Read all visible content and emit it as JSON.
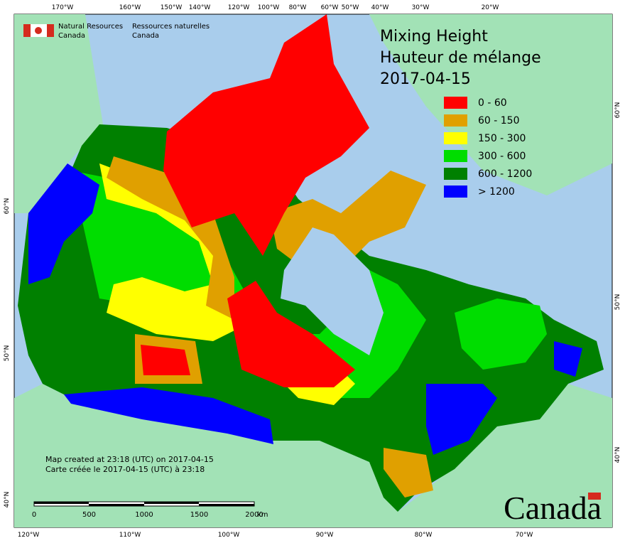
{
  "header": {
    "agency_en": [
      "Natural Resources",
      "Canada"
    ],
    "agency_fr": [
      "Ressources naturelles",
      "Canada"
    ]
  },
  "title": {
    "lines": [
      "Mixing Height",
      "Hauteur de mélange",
      "2017-04-15"
    ]
  },
  "legend": [
    {
      "label": "0 - 60",
      "color": "#ff0000"
    },
    {
      "label": "60 - 150",
      "color": "#e0a000"
    },
    {
      "label": "150 - 300",
      "color": "#ffff00"
    },
    {
      "label": "300 - 600",
      "color": "#00dd00"
    },
    {
      "label": "600 - 1200",
      "color": "#008000"
    },
    {
      "label": "> 1200",
      "color": "#0000ff"
    }
  ],
  "axes": {
    "top": [
      "170°W",
      "160°W",
      "150°W",
      "140°W",
      "120°W",
      "100°W",
      "80°W",
      "60°W",
      "50°W",
      "40°W",
      "30°W",
      "20°W"
    ],
    "bottom": [
      "120°W",
      "110°W",
      "100°W",
      "90°W",
      "80°W",
      "70°W"
    ],
    "left": [
      "60°N",
      "50°N",
      "40°N"
    ],
    "right": [
      "60°N",
      "50°N",
      "40°N"
    ]
  },
  "footer": {
    "created": [
      "Map created at 23:18 (UTC) on 2017-04-15",
      "Carte créée le 2017-04-15 (UTC) à 23:18"
    ]
  },
  "scale_bar": {
    "labels": [
      "0",
      "500",
      "1000",
      "1500",
      "2000"
    ],
    "unit": "km"
  },
  "wordmark": "Canada"
}
